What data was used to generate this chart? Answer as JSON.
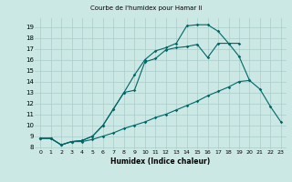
{
  "title": "Courbe de l'humidex pour Hamar Ii",
  "xlabel": "Humidex (Indice chaleur)",
  "ylabel": "",
  "xlim": [
    -0.5,
    23.5
  ],
  "ylim": [
    7.8,
    19.8
  ],
  "yticks": [
    8,
    9,
    10,
    11,
    12,
    13,
    14,
    15,
    16,
    17,
    18,
    19
  ],
  "xticks": [
    0,
    1,
    2,
    3,
    4,
    5,
    6,
    7,
    8,
    9,
    10,
    11,
    12,
    13,
    14,
    15,
    16,
    17,
    18,
    19,
    20,
    21,
    22,
    23
  ],
  "xtick_labels": [
    "0",
    "1",
    "2",
    "3",
    "4",
    "5",
    "6",
    "7",
    "8",
    "9",
    "10",
    "11",
    "12",
    "13",
    "14",
    "15",
    "16",
    "17",
    "18",
    "19",
    "20",
    "21",
    "22",
    "23"
  ],
  "bg_color": "#cce8e5",
  "grid_color": "#aaccca",
  "line_color": "#006666",
  "series": [
    {
      "x": [
        0,
        1,
        2,
        3,
        4,
        5,
        6,
        7,
        8,
        9,
        10,
        11,
        12,
        13,
        14,
        15,
        16,
        17,
        18,
        19,
        20,
        21,
        22,
        23
      ],
      "y": [
        8.8,
        8.8,
        8.2,
        8.5,
        8.5,
        8.7,
        9.0,
        9.3,
        9.7,
        10.0,
        10.3,
        10.7,
        11.0,
        11.4,
        11.8,
        12.2,
        12.7,
        13.1,
        13.5,
        14.0,
        14.1,
        13.3,
        11.7,
        10.3
      ]
    },
    {
      "x": [
        0,
        1,
        2,
        3,
        4,
        5,
        6,
        7,
        8,
        9,
        10,
        11,
        12,
        13,
        14,
        15,
        16,
        17,
        18,
        19,
        20
      ],
      "y": [
        8.8,
        8.8,
        8.2,
        8.5,
        8.6,
        9.0,
        10.0,
        11.5,
        13.0,
        13.2,
        15.8,
        16.1,
        16.9,
        17.1,
        17.2,
        17.4,
        16.2,
        17.5,
        17.5,
        16.3,
        14.1
      ]
    },
    {
      "x": [
        0,
        1,
        2,
        3,
        4,
        5,
        6,
        7,
        8,
        9,
        10,
        11,
        12,
        13,
        14,
        15,
        16,
        17,
        18,
        19
      ],
      "y": [
        8.8,
        8.8,
        8.2,
        8.5,
        8.6,
        9.0,
        10.0,
        11.5,
        13.0,
        14.6,
        16.0,
        16.8,
        17.1,
        17.5,
        19.1,
        19.2,
        19.2,
        18.6,
        17.5,
        17.5
      ]
    }
  ]
}
